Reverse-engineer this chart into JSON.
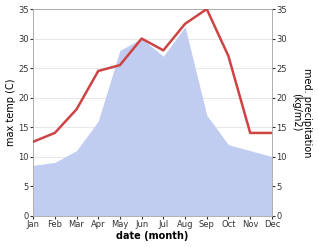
{
  "months": [
    "Jan",
    "Feb",
    "Mar",
    "Apr",
    "May",
    "Jun",
    "Jul",
    "Aug",
    "Sep",
    "Oct",
    "Nov",
    "Dec"
  ],
  "temperature": [
    12.5,
    14.0,
    18.0,
    24.5,
    25.5,
    30.0,
    28.0,
    32.5,
    35.0,
    27.0,
    14.0,
    14.0
  ],
  "precipitation": [
    8.5,
    9.0,
    11.0,
    16.0,
    28.0,
    30.0,
    27.0,
    32.0,
    17.0,
    12.0,
    11.0,
    10.0
  ],
  "temp_color": "#cc4444",
  "precip_color": "#c0ccf0",
  "background_color": "#ffffff",
  "ylim": [
    0,
    35
  ],
  "ylabel_left": "max temp (C)",
  "ylabel_right": "med. precipitation\n(kg/m2)",
  "xlabel": "date (month)",
  "temp_linewidth": 1.8,
  "xlabel_fontsize": 7,
  "ylabel_fontsize": 7,
  "tick_fontsize": 6,
  "yticks": [
    0,
    5,
    10,
    15,
    20,
    25,
    30,
    35
  ]
}
